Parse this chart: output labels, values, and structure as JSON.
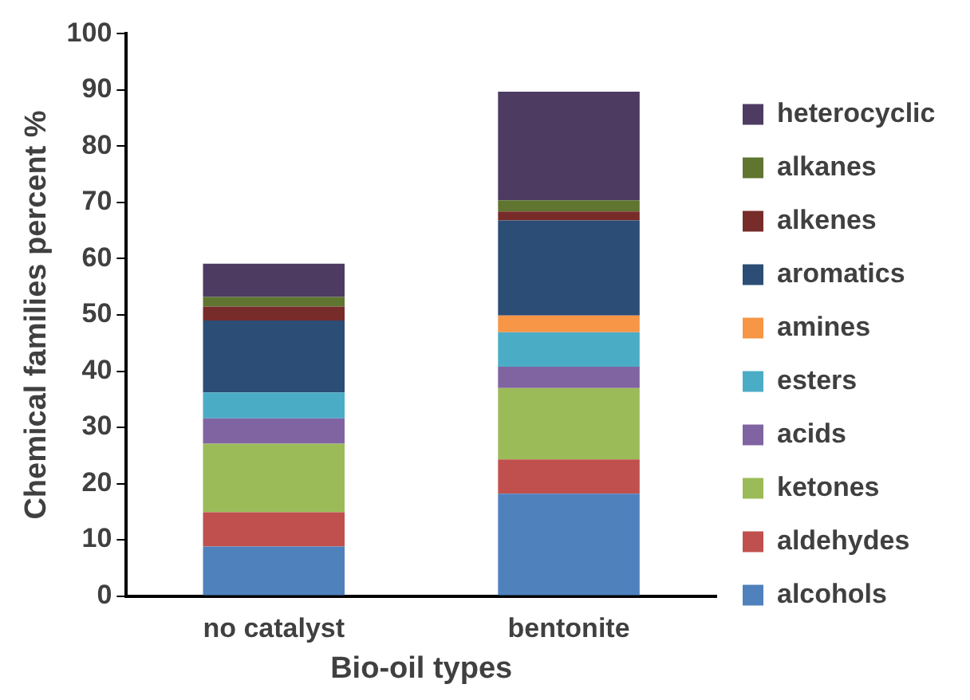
{
  "chart_data": {
    "type": "bar",
    "stacked": true,
    "xlabel": "Bio-oil types",
    "ylabel": "Chemical families percent %",
    "categories": [
      "no catalyst",
      "bentonite"
    ],
    "series": [
      {
        "name": "alcohols",
        "color": "#4f81bd",
        "values": [
          8.8,
          18.2
        ]
      },
      {
        "name": "aldehydes",
        "color": "#c0504d",
        "values": [
          6.1,
          6.1
        ]
      },
      {
        "name": "ketones",
        "color": "#9bbb59",
        "values": [
          12.2,
          12.7
        ]
      },
      {
        "name": "acids",
        "color": "#8064a2",
        "values": [
          4.5,
          3.8
        ]
      },
      {
        "name": "esters",
        "color": "#4bacc6",
        "values": [
          4.6,
          6.1
        ]
      },
      {
        "name": "amines",
        "color": "#f79646",
        "values": [
          0,
          3.0
        ]
      },
      {
        "name": "aromatics",
        "color": "#2c4d75",
        "values": [
          12.8,
          16.9
        ]
      },
      {
        "name": "alkenes",
        "color": "#772c2a",
        "values": [
          2.5,
          1.6
        ]
      },
      {
        "name": "alkanes",
        "color": "#5f7530",
        "values": [
          1.7,
          2.0
        ]
      },
      {
        "name": "heterocyclic",
        "color": "#4d3b62",
        "values": [
          5.9,
          19.3
        ]
      }
    ],
    "ylim": [
      0,
      100
    ],
    "yticks": [
      0,
      10,
      20,
      30,
      40,
      50,
      60,
      70,
      80,
      90,
      100
    ],
    "grid": false,
    "legend": "right"
  }
}
